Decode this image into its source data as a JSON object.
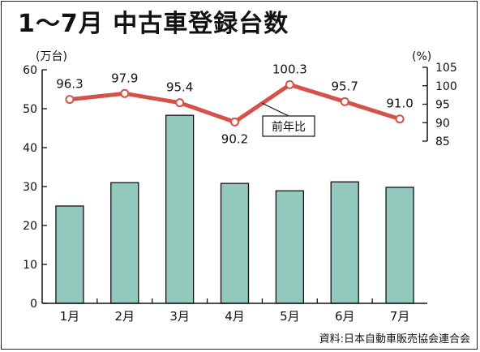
{
  "title": "1～7月 中古車登録台数",
  "source": "資料:日本自動車販売協会連合会",
  "colors": {
    "bar": "#93c8bd",
    "line": "#d5524a",
    "axis": "#111111"
  },
  "chart_data": {
    "type": "bar",
    "categories": [
      "1月",
      "2月",
      "3月",
      "4月",
      "5月",
      "6月",
      "7月"
    ],
    "left_axis": {
      "unit_label": "(万台)",
      "ylim": [
        0,
        60
      ],
      "ticks": [
        "0",
        "10",
        "20",
        "30",
        "40",
        "50",
        "60"
      ]
    },
    "right_axis": {
      "unit_label": "(%)",
      "ylim": [
        85,
        105
      ],
      "ticks": [
        "85",
        "90",
        "95",
        "100",
        "105"
      ]
    },
    "bars": {
      "values": [
        25.0,
        31.0,
        48.3,
        30.8,
        28.9,
        31.2,
        29.8
      ]
    },
    "line": {
      "name": "前年比",
      "values": [
        96.3,
        97.9,
        95.4,
        90.2,
        100.3,
        95.7,
        91.0
      ],
      "labels": [
        "96.3",
        "97.9",
        "95.4",
        "90.2",
        "100.3",
        "95.7",
        "91.0"
      ]
    },
    "grid": false
  }
}
